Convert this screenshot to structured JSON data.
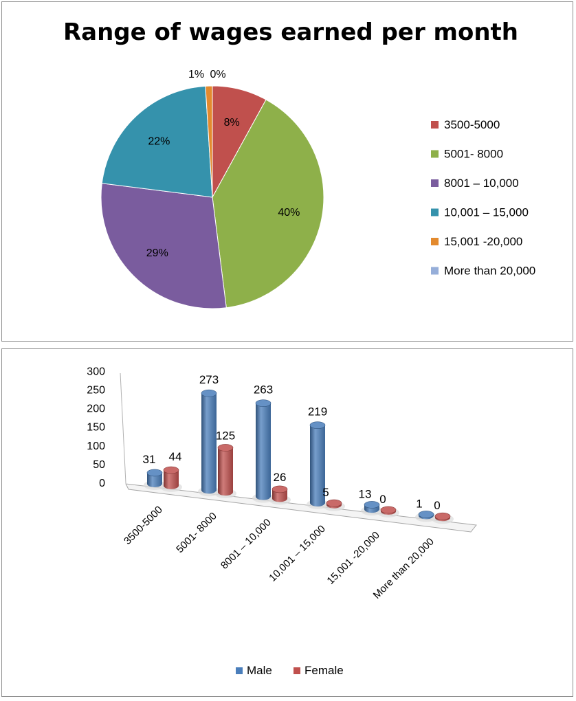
{
  "chart_data": [
    {
      "type": "pie",
      "title": "Range of wages earned per month",
      "categories": [
        "3500-5000",
        "5001- 8000",
        "8001 – 10,000",
        "10,001 – 15,000",
        "15,001 -20,000",
        "More than 20,000"
      ],
      "values": [
        8,
        40,
        29,
        22,
        1,
        0
      ],
      "labels": [
        "8%",
        "40%",
        "29%",
        "22%",
        "1%",
        "0%"
      ],
      "colors": [
        "#c0504d",
        "#8eb04a",
        "#7a5c9e",
        "#3592ac",
        "#e38a2e",
        "#96aed9"
      ],
      "legend_position": "right"
    },
    {
      "type": "bar",
      "style": "3d-cylinder",
      "categories": [
        "3500-5000",
        "5001- 8000",
        "8001 – 10,000",
        "10,001 – 15,000",
        "15,001 -20,000",
        "More than 20,000"
      ],
      "series": [
        {
          "name": "Male",
          "values": [
            31,
            273,
            263,
            219,
            13,
            1
          ],
          "color": "#4a7ebb"
        },
        {
          "name": "Female",
          "values": [
            44,
            125,
            26,
            5,
            0,
            0
          ],
          "color": "#c0504d"
        }
      ],
      "yticks": [
        "0",
        "50",
        "100",
        "150",
        "200",
        "250",
        "300"
      ],
      "ylim": [
        0,
        300
      ],
      "legend_position": "bottom"
    }
  ]
}
